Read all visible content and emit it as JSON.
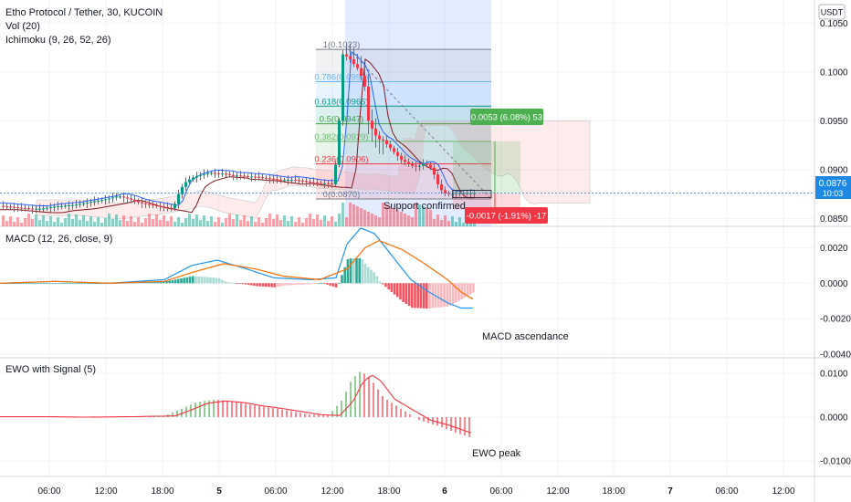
{
  "header": {
    "symbol": "Etho Protocol / Tether, 30, KUCOIN",
    "vol_label": "Vol (20)",
    "ichimoku_label": "Ichimoku (9, 26, 52, 26)"
  },
  "currency_badge": "USDT",
  "price_badge": {
    "price": "0.0876",
    "countdown": "10:03",
    "color": "#1e88e5"
  },
  "fib_levels": [
    {
      "label": "1(0.1023)",
      "value": 0.1023,
      "color": "#787b86"
    },
    {
      "label": "0.786(0.0990)",
      "value": 0.099,
      "color": "#64b5f6"
    },
    {
      "label": "0.618(0.0965)",
      "value": 0.0965,
      "color": "#089981"
    },
    {
      "label": "0.5(0.0947)",
      "value": 0.0947,
      "color": "#43a047"
    },
    {
      "label": "0.382(0.0929)",
      "value": 0.0929,
      "color": "#66bb6a"
    },
    {
      "label": "0.236(0.0906)",
      "value": 0.0906,
      "color": "#f23645"
    },
    {
      "label": "0(0.0870)",
      "value": 0.087,
      "color": "#787b86"
    }
  ],
  "annotations": {
    "support": "Support confirmed",
    "macd": "MACD ascendance",
    "ewo": "EWO peak"
  },
  "position_tool": {
    "profit_label": "0.0053 (6.08%) 53",
    "loss_label": "-0.0017 (-1.91%) -17",
    "profit_color": "#4caf50",
    "loss_color": "#f23645"
  },
  "panes": {
    "macd_label": "MACD (12, 26, close, 9)",
    "ewo_label": "EWO with Signal (5)"
  },
  "colors": {
    "up": "#089981",
    "down": "#f23645",
    "macd_line": "#2196f3",
    "signal_line": "#ff6d00",
    "ewo_up": "#4caf50"
  },
  "chart_data": [
    {
      "type": "candlestick",
      "pane": "price",
      "x_ticks": [
        "06:00",
        "12:00",
        "18:00",
        "5",
        "06:00",
        "12:00",
        "18:00",
        "6",
        "06:00",
        "12:00",
        "18:00",
        "7",
        "06:00",
        "12:00"
      ],
      "y_ticks": [
        "0.1050",
        "0.1000",
        "0.0950",
        "0.0900",
        "0.0850"
      ],
      "ylim": [
        0.0842,
        0.1068
      ],
      "price_path": [
        [
          0,
          0.0863
        ],
        [
          12,
          0.0862
        ],
        [
          24,
          0.0861
        ],
        [
          36,
          0.086
        ],
        [
          48,
          0.086
        ],
        [
          60,
          0.0862
        ],
        [
          72,
          0.0863
        ],
        [
          84,
          0.0864
        ],
        [
          96,
          0.0866
        ],
        [
          108,
          0.0868
        ],
        [
          120,
          0.087
        ],
        [
          132,
          0.0873
        ],
        [
          144,
          0.087
        ],
        [
          156,
          0.0866
        ],
        [
          168,
          0.0864
        ],
        [
          180,
          0.0862
        ],
        [
          192,
          0.086
        ],
        [
          198,
          0.0875
        ],
        [
          204,
          0.0886
        ],
        [
          210,
          0.089
        ],
        [
          216,
          0.0893
        ],
        [
          224,
          0.0895
        ],
        [
          232,
          0.0897
        ],
        [
          240,
          0.0896
        ],
        [
          248,
          0.0896
        ],
        [
          256,
          0.0894
        ],
        [
          264,
          0.0894
        ],
        [
          272,
          0.0893
        ],
        [
          280,
          0.0893
        ],
        [
          288,
          0.0892
        ],
        [
          296,
          0.0891
        ],
        [
          304,
          0.089
        ],
        [
          312,
          0.0889
        ],
        [
          320,
          0.089
        ],
        [
          328,
          0.0889
        ],
        [
          336,
          0.0888
        ],
        [
          344,
          0.0887
        ],
        [
          352,
          0.0886
        ],
        [
          360,
          0.0886
        ],
        [
          366,
          0.0885
        ],
        [
          370,
          0.0905
        ],
        [
          374,
          0.095
        ],
        [
          378,
          0.1018
        ],
        [
          382,
          0.1016
        ],
        [
          386,
          0.1013
        ],
        [
          390,
          0.1008
        ],
        [
          394,
          0.1004
        ],
        [
          398,
          0.0996
        ],
        [
          402,
          0.0985
        ],
        [
          406,
          0.095
        ],
        [
          410,
          0.0942
        ],
        [
          414,
          0.0935
        ],
        [
          418,
          0.0931
        ],
        [
          422,
          0.093
        ],
        [
          426,
          0.0926
        ],
        [
          430,
          0.0922
        ],
        [
          434,
          0.0918
        ],
        [
          438,
          0.0914
        ],
        [
          442,
          0.091
        ],
        [
          446,
          0.0908
        ],
        [
          450,
          0.0906
        ],
        [
          454,
          0.0904
        ],
        [
          458,
          0.0903
        ],
        [
          462,
          0.0904
        ],
        [
          466,
          0.0906
        ],
        [
          470,
          0.0905
        ],
        [
          474,
          0.0902
        ],
        [
          478,
          0.0895
        ],
        [
          482,
          0.0885
        ],
        [
          486,
          0.0879
        ],
        [
          490,
          0.0876
        ],
        [
          494,
          0.0875
        ],
        [
          498,
          0.0875
        ],
        [
          502,
          0.0876
        ],
        [
          506,
          0.0876
        ],
        [
          510,
          0.0876
        ],
        [
          514,
          0.0876
        ],
        [
          518,
          0.0876
        ]
      ]
    },
    {
      "type": "line",
      "pane": "macd",
      "title": "MACD (12, 26, close, 9)",
      "y_ticks": [
        "0.0020",
        "0.0000",
        "-0.0020",
        "-0.0040"
      ],
      "ylim": [
        -0.0042,
        0.0032
      ],
      "series": [
        {
          "name": "MACD",
          "values": [
            [
              0,
              0.0
            ],
            [
              60,
              0.0001
            ],
            [
              120,
              0.0
            ],
            [
              180,
              0.0002
            ],
            [
              210,
              0.001
            ],
            [
              238,
              0.0013
            ],
            [
              270,
              0.0008
            ],
            [
              300,
              0.0003
            ],
            [
              340,
              0.0002
            ],
            [
              368,
              0.0003
            ],
            [
              380,
              0.0022
            ],
            [
              395,
              0.0031
            ],
            [
              410,
              0.0028
            ],
            [
              430,
              0.0015
            ],
            [
              450,
              0.0002
            ],
            [
              470,
              -0.0005
            ],
            [
              490,
              -0.0011
            ],
            [
              505,
              -0.0014
            ],
            [
              518,
              -0.0014
            ]
          ]
        },
        {
          "name": "Signal",
          "values": [
            [
              0,
              0.0
            ],
            [
              60,
              0.0001
            ],
            [
              120,
              0.0
            ],
            [
              180,
              0.0001
            ],
            [
              210,
              0.0006
            ],
            [
              245,
              0.0011
            ],
            [
              280,
              0.0008
            ],
            [
              310,
              0.0004
            ],
            [
              350,
              0.0002
            ],
            [
              380,
              0.0008
            ],
            [
              400,
              0.002
            ],
            [
              415,
              0.0024
            ],
            [
              440,
              0.0019
            ],
            [
              465,
              0.0011
            ],
            [
              490,
              0.0002
            ],
            [
              505,
              -0.0005
            ],
            [
              518,
              -0.0009
            ]
          ]
        }
      ]
    },
    {
      "type": "bar",
      "pane": "ewo",
      "title": "EWO with Signal (5)",
      "y_ticks": [
        "0.0100",
        "0.0000",
        "-0.0100"
      ],
      "ylim": [
        -0.0135,
        0.0135
      ],
      "values": [
        [
          0,
          0.0001
        ],
        [
          40,
          0.0001
        ],
        [
          80,
          0.0
        ],
        [
          130,
          0.0001
        ],
        [
          180,
          0.0003
        ],
        [
          200,
          0.002
        ],
        [
          215,
          0.0034
        ],
        [
          235,
          0.004
        ],
        [
          255,
          0.0036
        ],
        [
          275,
          0.0028
        ],
        [
          295,
          0.0022
        ],
        [
          315,
          0.0015
        ],
        [
          340,
          0.0006
        ],
        [
          360,
          0.0004
        ],
        [
          375,
          0.004
        ],
        [
          385,
          0.0085
        ],
        [
          395,
          0.0105
        ],
        [
          405,
          0.009
        ],
        [
          420,
          0.0045
        ],
        [
          440,
          0.0018
        ],
        [
          460,
          -0.0008
        ],
        [
          480,
          -0.002
        ],
        [
          500,
          -0.0036
        ],
        [
          515,
          -0.0046
        ]
      ]
    }
  ]
}
